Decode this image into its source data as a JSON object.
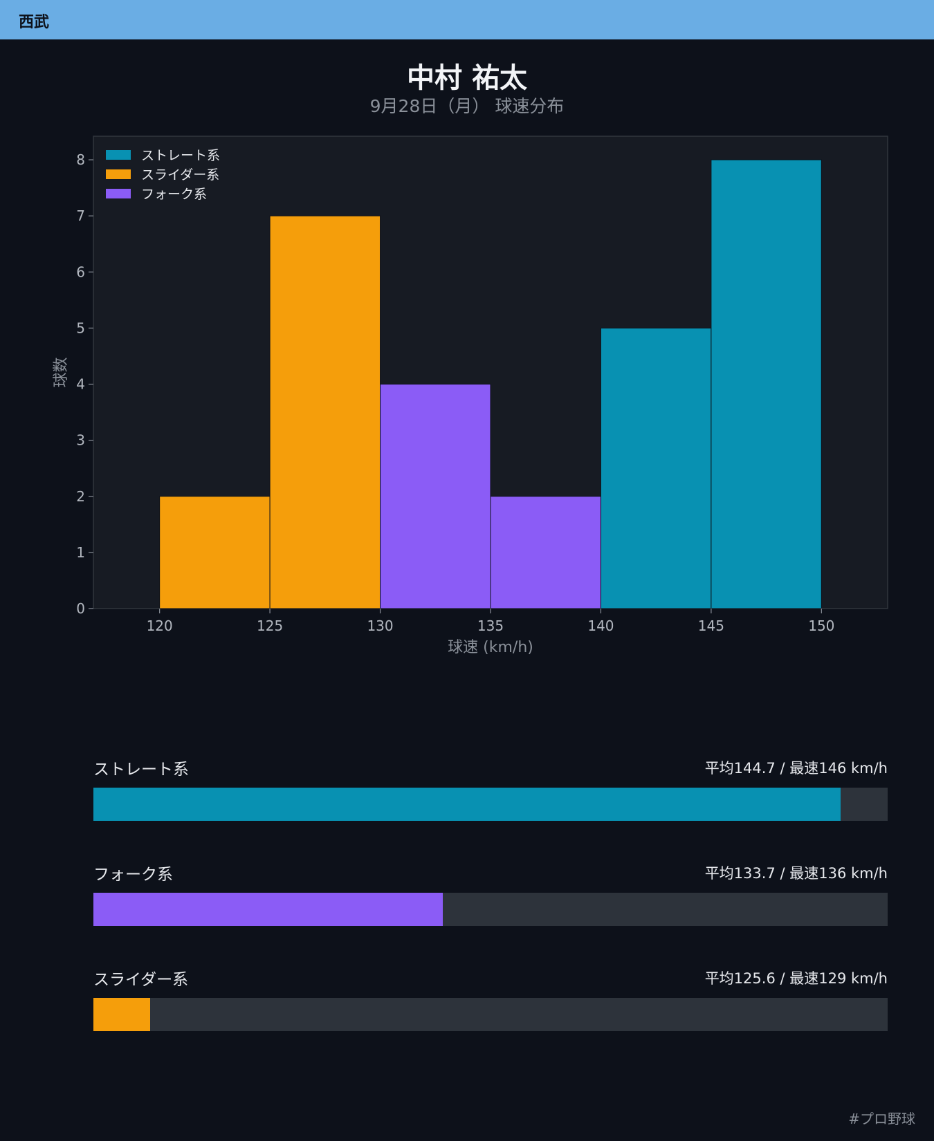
{
  "header": {
    "team": "西武"
  },
  "title": {
    "player": "中村 祐太",
    "subtitle": "9月28日（月） 球速分布"
  },
  "chart_data": {
    "type": "bar",
    "xlabel": "球速 (km/h)",
    "ylabel": "球数",
    "xlim": [
      120,
      150
    ],
    "ylim": [
      0,
      8
    ],
    "xticks": [
      "120",
      "125",
      "130",
      "135",
      "140",
      "145",
      "150"
    ],
    "yticks": [
      "0",
      "1",
      "2",
      "3",
      "4",
      "5",
      "6",
      "7",
      "8"
    ],
    "bin_width": 5,
    "legend_position": "top-left",
    "grid": false,
    "series": [
      {
        "name": "ストレート系",
        "color": "#0891b2",
        "bins": [
          {
            "x0": 140,
            "x1": 145,
            "count": 5
          },
          {
            "x0": 145,
            "x1": 150,
            "count": 8
          }
        ]
      },
      {
        "name": "スライダー系",
        "color": "#f59e0b",
        "bins": [
          {
            "x0": 120,
            "x1": 125,
            "count": 2
          },
          {
            "x0": 125,
            "x1": 130,
            "count": 7
          }
        ]
      },
      {
        "name": "フォーク系",
        "color": "#8b5cf6",
        "bins": [
          {
            "x0": 130,
            "x1": 135,
            "count": 4
          },
          {
            "x0": 135,
            "x1": 140,
            "count": 2
          }
        ]
      }
    ]
  },
  "stats": [
    {
      "label": "ストレート系",
      "value": "平均144.7 / 最速146 km/h",
      "color": "#0891b2",
      "fill": 0.941
    },
    {
      "label": "フォーク系",
      "value": "平均133.7 / 最速136 km/h",
      "color": "#8b5cf6",
      "fill": 0.44
    },
    {
      "label": "スライダー系",
      "value": "平均125.6 / 最速129 km/h",
      "color": "#f59e0b",
      "fill": 0.071
    }
  ],
  "footer": {
    "hashtag": "#プロ野球"
  }
}
